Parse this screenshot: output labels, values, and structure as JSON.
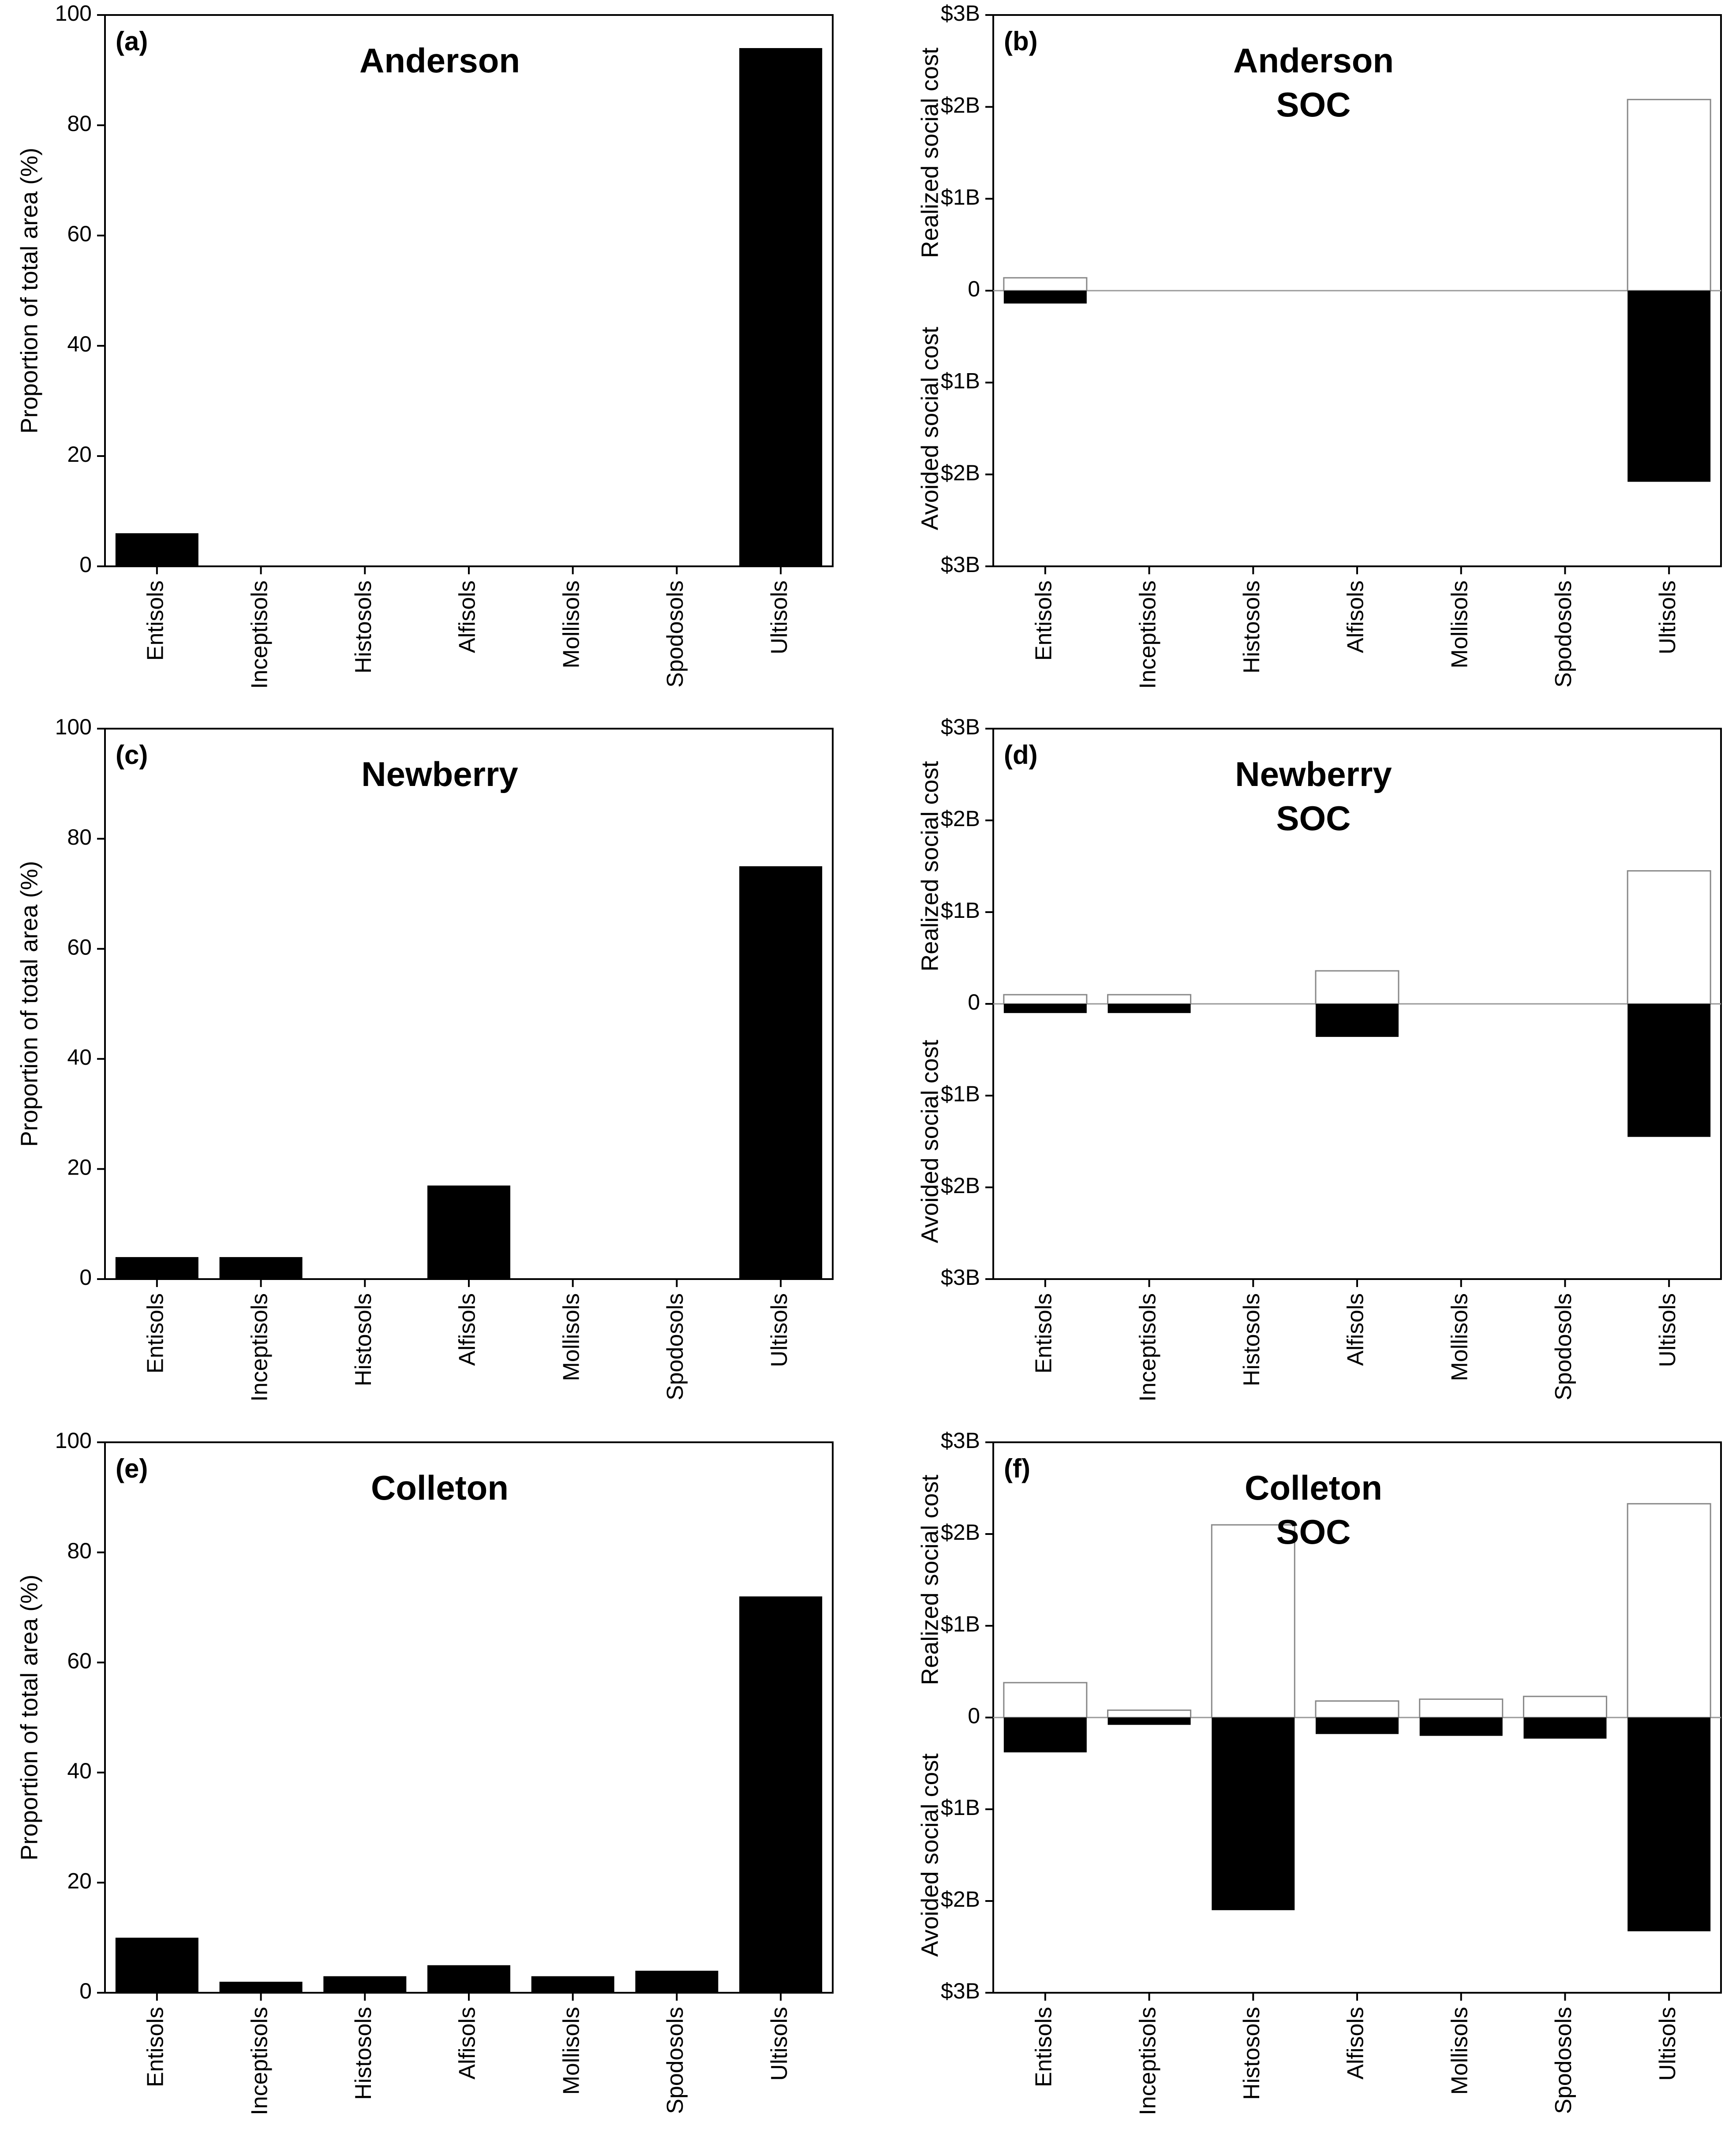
{
  "chart_data": [
    {
      "id": "a",
      "type": "bar",
      "panel_label": "(a)",
      "title_lines": [
        "Anderson"
      ],
      "ylabel": "Proportion of total area (%)",
      "ylim": [
        0,
        100
      ],
      "yticks": [
        0,
        20,
        40,
        60,
        80,
        100
      ],
      "ytick_labels": [
        "0",
        "20",
        "40",
        "60",
        "80",
        "100"
      ],
      "categories": [
        "Entisols",
        "Inceptisols",
        "Histosols",
        "Alfisols",
        "Mollisols",
        "Spodosols",
        "Ultisols"
      ],
      "values": [
        6,
        0,
        0,
        0,
        0,
        0,
        94
      ],
      "bar_color": "#000000"
    },
    {
      "id": "b",
      "type": "bar",
      "panel_label": "(b)",
      "title_lines": [
        "Anderson",
        "SOC"
      ],
      "ylabel_upper": "Realized social cost",
      "ylabel_lower": "Avoided social cost",
      "ylim": [
        -3,
        3
      ],
      "yticks": [
        3,
        2,
        1,
        0,
        -1,
        -2,
        -3
      ],
      "ytick_labels": [
        "$3B",
        "$2B",
        "$1B",
        "0",
        "$1B",
        "$2B",
        "$3B"
      ],
      "categories": [
        "Entisols",
        "Inceptisols",
        "Histosols",
        "Alfisols",
        "Mollisols",
        "Spodosols",
        "Ultisols"
      ],
      "series": [
        {
          "name": "Realized social cost",
          "values": [
            0.14,
            0,
            0,
            0,
            0,
            0,
            2.08
          ],
          "color": "#ffffff"
        },
        {
          "name": "Avoided social cost",
          "values": [
            -0.14,
            0,
            0,
            0,
            0,
            0,
            -2.08
          ],
          "color": "#000000"
        }
      ]
    },
    {
      "id": "c",
      "type": "bar",
      "panel_label": "(c)",
      "title_lines": [
        "Newberry"
      ],
      "ylabel": "Proportion of total area (%)",
      "ylim": [
        0,
        100
      ],
      "yticks": [
        0,
        20,
        40,
        60,
        80,
        100
      ],
      "ytick_labels": [
        "0",
        "20",
        "40",
        "60",
        "80",
        "100"
      ],
      "categories": [
        "Entisols",
        "Inceptisols",
        "Histosols",
        "Alfisols",
        "Mollisols",
        "Spodosols",
        "Ultisols"
      ],
      "values": [
        4,
        4,
        0,
        17,
        0,
        0,
        75
      ],
      "bar_color": "#000000"
    },
    {
      "id": "d",
      "type": "bar",
      "panel_label": "(d)",
      "title_lines": [
        "Newberry",
        "SOC"
      ],
      "ylabel_upper": "Realized social cost",
      "ylabel_lower": "Avoided social cost",
      "ylim": [
        -3,
        3
      ],
      "yticks": [
        3,
        2,
        1,
        0,
        -1,
        -2,
        -3
      ],
      "ytick_labels": [
        "$3B",
        "$2B",
        "$1B",
        "0",
        "$1B",
        "$2B",
        "$3B"
      ],
      "categories": [
        "Entisols",
        "Inceptisols",
        "Histosols",
        "Alfisols",
        "Mollisols",
        "Spodosols",
        "Ultisols"
      ],
      "series": [
        {
          "name": "Realized social cost",
          "values": [
            0.1,
            0.1,
            0,
            0.36,
            0,
            0,
            1.45
          ],
          "color": "#ffffff"
        },
        {
          "name": "Avoided social cost",
          "values": [
            -0.1,
            -0.1,
            0,
            -0.36,
            0,
            0,
            -1.45
          ],
          "color": "#000000"
        }
      ]
    },
    {
      "id": "e",
      "type": "bar",
      "panel_label": "(e)",
      "title_lines": [
        "Colleton"
      ],
      "ylabel": "Proportion of total area (%)",
      "ylim": [
        0,
        100
      ],
      "yticks": [
        0,
        20,
        40,
        60,
        80,
        100
      ],
      "ytick_labels": [
        "0",
        "20",
        "40",
        "60",
        "80",
        "100"
      ],
      "categories": [
        "Entisols",
        "Inceptisols",
        "Histosols",
        "Alfisols",
        "Mollisols",
        "Spodosols",
        "Ultisols"
      ],
      "values": [
        10,
        2,
        3,
        5,
        3,
        4,
        72
      ],
      "bar_color": "#000000"
    },
    {
      "id": "f",
      "type": "bar",
      "panel_label": "(f)",
      "title_lines": [
        "Colleton",
        "SOC"
      ],
      "ylabel_upper": "Realized social cost",
      "ylabel_lower": "Avoided social cost",
      "ylim": [
        -3,
        3
      ],
      "yticks": [
        3,
        2,
        1,
        0,
        -1,
        -2,
        -3
      ],
      "ytick_labels": [
        "$3B",
        "$2B",
        "$1B",
        "0",
        "$1B",
        "$2B",
        "$3B"
      ],
      "categories": [
        "Entisols",
        "Inceptisols",
        "Histosols",
        "Alfisols",
        "Mollisols",
        "Spodosols",
        "Ultisols"
      ],
      "series": [
        {
          "name": "Realized social cost",
          "values": [
            0.38,
            0.08,
            2.1,
            0.18,
            0.2,
            0.23,
            2.33
          ],
          "color": "#ffffff"
        },
        {
          "name": "Avoided social cost",
          "values": [
            -0.38,
            -0.08,
            -2.1,
            -0.18,
            -0.2,
            -0.23,
            -2.33
          ],
          "color": "#000000"
        }
      ]
    }
  ]
}
